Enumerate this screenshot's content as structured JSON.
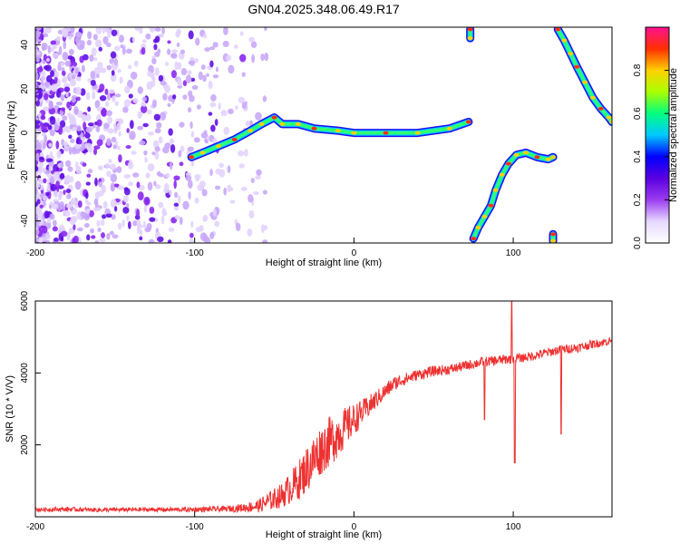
{
  "title": "GN04.2025.348.06.49.R17",
  "chart_data": [
    {
      "type": "heatmap",
      "xlabel": "Height of straight line (km)",
      "ylabel": "Frequency (Hz)",
      "xlim": [
        -200,
        162
      ],
      "ylim": [
        -50,
        48
      ],
      "xticks": [
        -200,
        -100,
        0,
        100
      ],
      "yticks": [
        -40,
        -20,
        0,
        20,
        40
      ],
      "grid": false,
      "colorbar": {
        "label": "Normalized spectral amplitude",
        "range": [
          0,
          1
        ],
        "ticks": [
          0.0,
          0.2,
          0.4,
          0.6,
          0.8
        ],
        "tick_labels": [
          "0.0",
          "0.2",
          "0.4",
          "0.6",
          "0.8"
        ],
        "colors": [
          "#ffffff",
          "#e6d8ff",
          "#9b3cf0",
          "#5a00e0",
          "#0000ff",
          "#00c8ff",
          "#00ff80",
          "#aaff00",
          "#ffd000",
          "#ff3000",
          "#ff1090"
        ]
      },
      "noise_region": {
        "x_range": [
          -200,
          -55
        ],
        "description": "scattered purple speckle"
      },
      "traces": [
        {
          "points": [
            [
              -102,
              -11
            ],
            [
              -95,
              -9
            ],
            [
              -85,
              -6
            ],
            [
              -75,
              -3
            ],
            [
              -65,
              1
            ],
            [
              -58,
              4
            ],
            [
              -50,
              7
            ],
            [
              -45,
              4
            ],
            [
              -35,
              4
            ],
            [
              -25,
              2
            ],
            [
              -10,
              1
            ],
            [
              0,
              0
            ],
            [
              20,
              0
            ],
            [
              40,
              0
            ],
            [
              60,
              2
            ],
            [
              72,
              5
            ]
          ]
        },
        {
          "points": [
            [
              73,
              47
            ],
            [
              73,
              43
            ]
          ]
        },
        {
          "points": [
            [
              75,
              -48
            ],
            [
              78,
              -43
            ],
            [
              82,
              -38
            ],
            [
              86,
              -33
            ],
            [
              89,
              -26
            ],
            [
              93,
              -19
            ],
            [
              97,
              -14
            ],
            [
              102,
              -10
            ],
            [
              108,
              -9
            ],
            [
              115,
              -11
            ],
            [
              122,
              -12
            ],
            [
              125,
              -11
            ]
          ]
        },
        {
          "points": [
            [
              125,
              -46
            ],
            [
              125,
              -49
            ]
          ]
        },
        {
          "points": [
            [
              128,
              47
            ],
            [
              132,
              42
            ],
            [
              136,
              36
            ],
            [
              140,
              30
            ],
            [
              145,
              23
            ],
            [
              150,
              16
            ],
            [
              155,
              11
            ],
            [
              160,
              7
            ],
            [
              162,
              5
            ]
          ]
        }
      ]
    },
    {
      "type": "line",
      "xlabel": "Height of straight line (km)",
      "ylabel": "SNR (10 * V/V)",
      "xlim": [
        -200,
        162
      ],
      "ylim": [
        0,
        6000
      ],
      "xticks": [
        -200,
        -100,
        0,
        100
      ],
      "yticks": [
        2000,
        4000,
        6000
      ],
      "grid": false,
      "series": [
        {
          "color": "#ee3030",
          "x": [
            -200,
            -180,
            -160,
            -140,
            -120,
            -100,
            -80,
            -70,
            -60,
            -55,
            -50,
            -45,
            -40,
            -35,
            -30,
            -25,
            -20,
            -15,
            -10,
            -5,
            0,
            5,
            10,
            15,
            20,
            25,
            30,
            40,
            50,
            60,
            70,
            80,
            90,
            100,
            110,
            120,
            130,
            140,
            150,
            162
          ],
          "y": [
            200,
            210,
            190,
            200,
            200,
            200,
            220,
            250,
            300,
            400,
            500,
            600,
            800,
            1000,
            1300,
            1600,
            1900,
            2100,
            2300,
            2500,
            2700,
            2900,
            3100,
            3300,
            3500,
            3700,
            3800,
            3950,
            4050,
            4100,
            4200,
            4300,
            4350,
            4400,
            4450,
            4550,
            4650,
            4700,
            4800,
            4900
          ],
          "noise_amplitude": [
            60,
            60,
            60,
            60,
            60,
            70,
            80,
            120,
            180,
            250,
            300,
            350,
            450,
            550,
            650,
            700,
            700,
            700,
            650,
            550,
            450,
            350,
            300,
            250,
            220,
            200,
            180,
            150,
            150,
            140,
            140,
            140,
            140,
            140,
            130,
            130,
            130,
            130,
            120,
            120
          ],
          "spikes": [
            {
              "x": 99,
              "y": 6000
            },
            {
              "x": 101,
              "y": 1500
            },
            {
              "x": 82,
              "y": 2700
            },
            {
              "x": 130,
              "y": 2300
            },
            {
              "x": 105,
              "y": 4500
            }
          ]
        }
      ]
    }
  ]
}
